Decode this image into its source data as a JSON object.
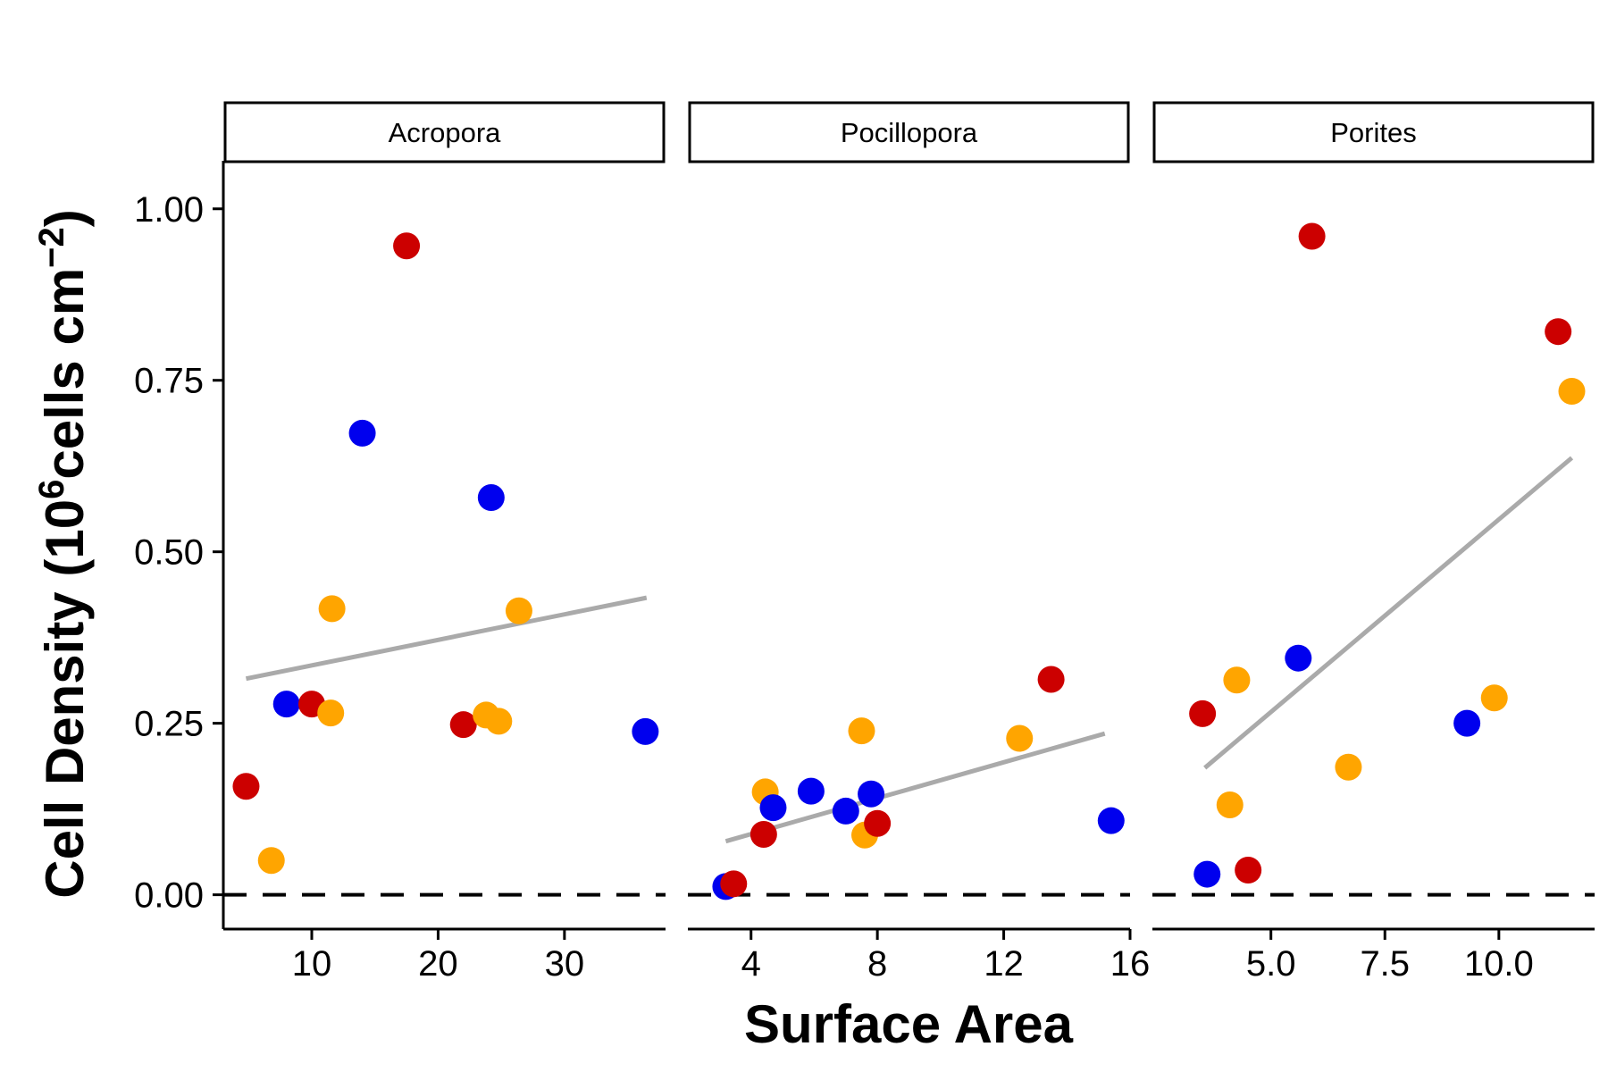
{
  "chart_data": {
    "type": "scatter",
    "ylabel": "Cell Density (10^6 cells cm^-2)",
    "ylabel_parts": {
      "open": "Cell Density (10",
      "sup1": "6",
      "mid": "cells cm",
      "sup2": "−2",
      "close": ")"
    },
    "xlabel": "Surface Area",
    "ylim": [
      -0.05,
      1.07
    ],
    "yticks": [
      0.0,
      0.25,
      0.5,
      0.75,
      1.0
    ],
    "ytick_labels": [
      "0.00",
      "0.25",
      "0.50",
      "0.75",
      "1.00"
    ],
    "reference_line": {
      "y": 0.0,
      "style": "dashed",
      "color": "#000000"
    },
    "colors": {
      "red": "#cc0000",
      "blue": "#0000ee",
      "orange": "#ffa500",
      "fit": "#aaaaaa"
    },
    "legend": "none",
    "grid": false,
    "panels": [
      {
        "name": "Acropora",
        "xlim": [
          3.0,
          38.0
        ],
        "xticks": [
          10,
          20,
          30
        ],
        "xtick_labels": [
          "10",
          "20",
          "30"
        ],
        "fit": {
          "x": [
            4.8,
            36.5
          ],
          "y": [
            0.315,
            0.433
          ]
        },
        "points": [
          {
            "x": 4.8,
            "y": 0.158,
            "color": "red"
          },
          {
            "x": 6.8,
            "y": 0.05,
            "color": "orange"
          },
          {
            "x": 8.0,
            "y": 0.278,
            "color": "blue"
          },
          {
            "x": 10.0,
            "y": 0.278,
            "color": "red"
          },
          {
            "x": 11.5,
            "y": 0.265,
            "color": "orange"
          },
          {
            "x": 11.6,
            "y": 0.417,
            "color": "orange"
          },
          {
            "x": 14.0,
            "y": 0.673,
            "color": "blue"
          },
          {
            "x": 17.5,
            "y": 0.946,
            "color": "red"
          },
          {
            "x": 22.0,
            "y": 0.248,
            "color": "red"
          },
          {
            "x": 23.8,
            "y": 0.262,
            "color": "orange"
          },
          {
            "x": 24.2,
            "y": 0.579,
            "color": "blue"
          },
          {
            "x": 24.8,
            "y": 0.253,
            "color": "orange"
          },
          {
            "x": 26.4,
            "y": 0.414,
            "color": "orange"
          },
          {
            "x": 36.4,
            "y": 0.238,
            "color": "blue"
          }
        ]
      },
      {
        "name": "Pocillopora",
        "xlim": [
          2.0,
          16.0
        ],
        "xticks": [
          4,
          8,
          12,
          16
        ],
        "xtick_labels": [
          "4",
          "8",
          "12",
          "16"
        ],
        "fit": {
          "x": [
            3.2,
            15.2
          ],
          "y": [
            0.078,
            0.235
          ]
        },
        "points": [
          {
            "x": 3.2,
            "y": 0.012,
            "color": "blue"
          },
          {
            "x": 3.45,
            "y": 0.016,
            "color": "red"
          },
          {
            "x": 4.4,
            "y": 0.088,
            "color": "red"
          },
          {
            "x": 4.45,
            "y": 0.15,
            "color": "orange"
          },
          {
            "x": 4.7,
            "y": 0.127,
            "color": "blue"
          },
          {
            "x": 5.9,
            "y": 0.151,
            "color": "blue"
          },
          {
            "x": 7.0,
            "y": 0.122,
            "color": "blue"
          },
          {
            "x": 7.5,
            "y": 0.239,
            "color": "orange"
          },
          {
            "x": 7.6,
            "y": 0.087,
            "color": "orange"
          },
          {
            "x": 7.8,
            "y": 0.147,
            "color": "blue"
          },
          {
            "x": 8.0,
            "y": 0.104,
            "color": "red"
          },
          {
            "x": 12.5,
            "y": 0.228,
            "color": "orange"
          },
          {
            "x": 13.5,
            "y": 0.314,
            "color": "red"
          },
          {
            "x": 15.4,
            "y": 0.108,
            "color": "blue"
          }
        ]
      },
      {
        "name": "Porites",
        "xlim": [
          2.4,
          12.1
        ],
        "xticks": [
          5.0,
          7.5,
          10.0
        ],
        "xtick_labels": [
          "5.0",
          "7.5",
          "10.0"
        ],
        "fit": {
          "x": [
            3.55,
            11.6
          ],
          "y": [
            0.185,
            0.637
          ]
        },
        "points": [
          {
            "x": 3.5,
            "y": 0.264,
            "color": "red"
          },
          {
            "x": 3.6,
            "y": 0.03,
            "color": "blue"
          },
          {
            "x": 4.1,
            "y": 0.131,
            "color": "orange"
          },
          {
            "x": 4.25,
            "y": 0.313,
            "color": "orange"
          },
          {
            "x": 4.5,
            "y": 0.036,
            "color": "red"
          },
          {
            "x": 5.6,
            "y": 0.345,
            "color": "blue"
          },
          {
            "x": 5.9,
            "y": 0.96,
            "color": "red"
          },
          {
            "x": 6.7,
            "y": 0.186,
            "color": "orange"
          },
          {
            "x": 9.3,
            "y": 0.25,
            "color": "blue"
          },
          {
            "x": 9.9,
            "y": 0.287,
            "color": "orange"
          },
          {
            "x": 11.3,
            "y": 0.821,
            "color": "red"
          },
          {
            "x": 11.6,
            "y": 0.734,
            "color": "orange"
          }
        ]
      }
    ]
  }
}
